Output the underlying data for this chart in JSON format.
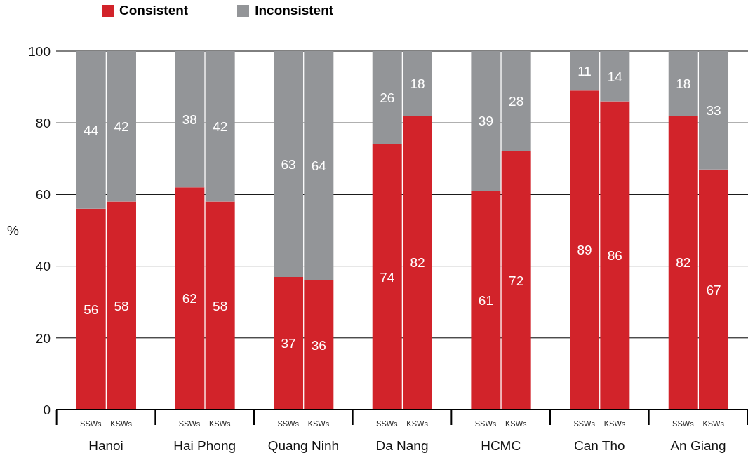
{
  "chart_data": {
    "type": "bar",
    "stacked": true,
    "categories": [
      "SSWs",
      "KSWs",
      "SSWs",
      "KSWs",
      "SSWs",
      "KSWs",
      "SSWs",
      "KSWs",
      "SSWs",
      "KSWs",
      "SSWs",
      "KSWs",
      "SSWs",
      "KSWs"
    ],
    "annotations": [
      "Hanoi",
      "Hai Phong",
      "Quang Ninh",
      "Da Nang",
      "HCMC",
      "Can Tho",
      "An Giang"
    ],
    "series": [
      {
        "name": "Consistent",
        "color": "#d2232a",
        "values": [
          56,
          58,
          62,
          58,
          37,
          36,
          74,
          82,
          61,
          72,
          89,
          86,
          82,
          67
        ]
      },
      {
        "name": "Inconsistent",
        "color": "#939598",
        "values": [
          44,
          42,
          38,
          42,
          63,
          64,
          26,
          18,
          39,
          28,
          11,
          14,
          18,
          33
        ]
      }
    ],
    "ylabel": "%",
    "ylim": [
      0,
      100
    ],
    "yticks": [
      0,
      20,
      40,
      60,
      80,
      100
    ],
    "grid": "y",
    "legend": "top left",
    "data_labels": true
  }
}
